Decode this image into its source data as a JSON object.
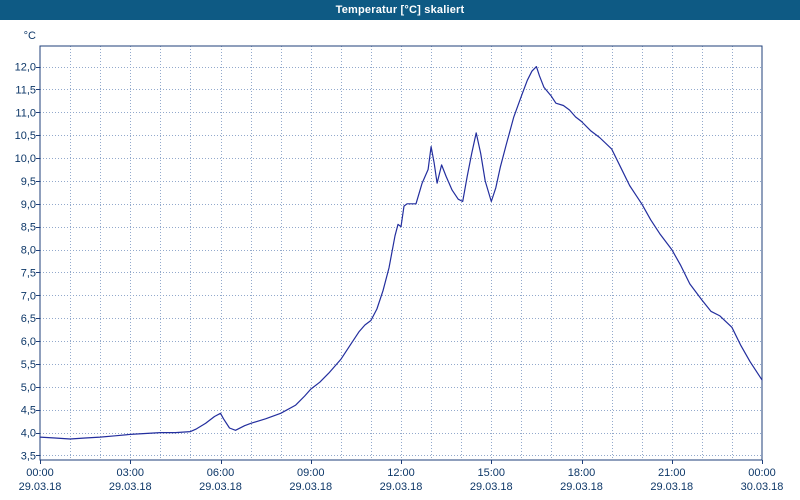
{
  "window": {
    "title": "Temperatur [°C] skaliert"
  },
  "colors": {
    "title_bar_bg": "#0e5a84",
    "title_text": "#ffffff",
    "chart_bg": "#ffffff",
    "plot_bg": "#ffffff",
    "plot_border": "#1f3f7a",
    "grid": "#92a9cc",
    "axis_text": "#0d3768",
    "line": "#232e9e"
  },
  "chart_data": {
    "type": "line",
    "title": "Temperatur [°C] skaliert",
    "ylabel": "°C",
    "xlabel": "",
    "grid": true,
    "legend": "none",
    "ylim": [
      3.4,
      12.45
    ],
    "xlim_hours": [
      0,
      24
    ],
    "x_minor_grid_step_hours": 1,
    "y_ticks": [
      {
        "value": 3.5,
        "label": "3,5"
      },
      {
        "value": 4.0,
        "label": "4,0"
      },
      {
        "value": 4.5,
        "label": "4,5"
      },
      {
        "value": 5.0,
        "label": "5,0"
      },
      {
        "value": 5.5,
        "label": "5,5"
      },
      {
        "value": 6.0,
        "label": "6,0"
      },
      {
        "value": 6.5,
        "label": "6,5"
      },
      {
        "value": 7.0,
        "label": "7,0"
      },
      {
        "value": 7.5,
        "label": "7,5"
      },
      {
        "value": 8.0,
        "label": "8,0"
      },
      {
        "value": 8.5,
        "label": "8,5"
      },
      {
        "value": 9.0,
        "label": "9,0"
      },
      {
        "value": 9.5,
        "label": "9,5"
      },
      {
        "value": 10.0,
        "label": "10,0"
      },
      {
        "value": 10.5,
        "label": "10,5"
      },
      {
        "value": 11.0,
        "label": "11,0"
      },
      {
        "value": 11.5,
        "label": "11,5"
      },
      {
        "value": 12.0,
        "label": "12,0"
      }
    ],
    "x_ticks": [
      {
        "hour": 0,
        "time": "00:00",
        "date": "29.03.18"
      },
      {
        "hour": 3,
        "time": "03:00",
        "date": "29.03.18"
      },
      {
        "hour": 6,
        "time": "06:00",
        "date": "29.03.18"
      },
      {
        "hour": 9,
        "time": "09:00",
        "date": "29.03.18"
      },
      {
        "hour": 12,
        "time": "12:00",
        "date": "29.03.18"
      },
      {
        "hour": 15,
        "time": "15:00",
        "date": "29.03.18"
      },
      {
        "hour": 18,
        "time": "18:00",
        "date": "29.03.18"
      },
      {
        "hour": 21,
        "time": "21:00",
        "date": "29.03.18"
      },
      {
        "hour": 24,
        "time": "00:00",
        "date": "30.03.18"
      }
    ],
    "series": [
      {
        "name": "Temperatur [°C]",
        "color": "#232e9e",
        "points": [
          [
            0.0,
            3.9
          ],
          [
            0.5,
            3.88
          ],
          [
            1.0,
            3.86
          ],
          [
            1.5,
            3.88
          ],
          [
            2.0,
            3.9
          ],
          [
            2.5,
            3.93
          ],
          [
            3.0,
            3.96
          ],
          [
            3.5,
            3.98
          ],
          [
            4.0,
            4.0
          ],
          [
            4.5,
            4.0
          ],
          [
            5.0,
            4.02
          ],
          [
            5.2,
            4.08
          ],
          [
            5.5,
            4.2
          ],
          [
            5.8,
            4.35
          ],
          [
            6.0,
            4.42
          ],
          [
            6.1,
            4.3
          ],
          [
            6.3,
            4.1
          ],
          [
            6.5,
            4.05
          ],
          [
            6.8,
            4.15
          ],
          [
            7.0,
            4.2
          ],
          [
            7.5,
            4.3
          ],
          [
            8.0,
            4.42
          ],
          [
            8.5,
            4.6
          ],
          [
            8.8,
            4.8
          ],
          [
            9.0,
            4.95
          ],
          [
            9.3,
            5.1
          ],
          [
            9.6,
            5.3
          ],
          [
            10.0,
            5.6
          ],
          [
            10.3,
            5.9
          ],
          [
            10.6,
            6.2
          ],
          [
            10.8,
            6.35
          ],
          [
            11.0,
            6.45
          ],
          [
            11.2,
            6.7
          ],
          [
            11.4,
            7.1
          ],
          [
            11.6,
            7.6
          ],
          [
            11.8,
            8.3
          ],
          [
            11.9,
            8.55
          ],
          [
            12.0,
            8.5
          ],
          [
            12.1,
            8.95
          ],
          [
            12.2,
            9.0
          ],
          [
            12.5,
            9.0
          ],
          [
            12.7,
            9.45
          ],
          [
            12.9,
            9.75
          ],
          [
            13.0,
            10.25
          ],
          [
            13.1,
            9.9
          ],
          [
            13.2,
            9.45
          ],
          [
            13.35,
            9.85
          ],
          [
            13.5,
            9.6
          ],
          [
            13.7,
            9.3
          ],
          [
            13.9,
            9.1
          ],
          [
            14.05,
            9.05
          ],
          [
            14.2,
            9.6
          ],
          [
            14.35,
            10.1
          ],
          [
            14.5,
            10.55
          ],
          [
            14.65,
            10.1
          ],
          [
            14.8,
            9.5
          ],
          [
            15.0,
            9.05
          ],
          [
            15.15,
            9.35
          ],
          [
            15.3,
            9.8
          ],
          [
            15.5,
            10.3
          ],
          [
            15.75,
            10.9
          ],
          [
            16.0,
            11.35
          ],
          [
            16.2,
            11.7
          ],
          [
            16.35,
            11.9
          ],
          [
            16.5,
            12.0
          ],
          [
            16.6,
            11.8
          ],
          [
            16.75,
            11.55
          ],
          [
            17.0,
            11.35
          ],
          [
            17.15,
            11.2
          ],
          [
            17.4,
            11.15
          ],
          [
            17.6,
            11.05
          ],
          [
            17.8,
            10.9
          ],
          [
            18.0,
            10.8
          ],
          [
            18.3,
            10.6
          ],
          [
            18.6,
            10.45
          ],
          [
            19.0,
            10.2
          ],
          [
            19.3,
            9.8
          ],
          [
            19.6,
            9.4
          ],
          [
            20.0,
            9.0
          ],
          [
            20.3,
            8.65
          ],
          [
            20.6,
            8.35
          ],
          [
            21.0,
            8.0
          ],
          [
            21.3,
            7.65
          ],
          [
            21.6,
            7.25
          ],
          [
            22.0,
            6.9
          ],
          [
            22.3,
            6.65
          ],
          [
            22.6,
            6.55
          ],
          [
            23.0,
            6.3
          ],
          [
            23.3,
            5.9
          ],
          [
            23.6,
            5.55
          ],
          [
            23.85,
            5.3
          ],
          [
            24.0,
            5.15
          ]
        ]
      }
    ]
  }
}
